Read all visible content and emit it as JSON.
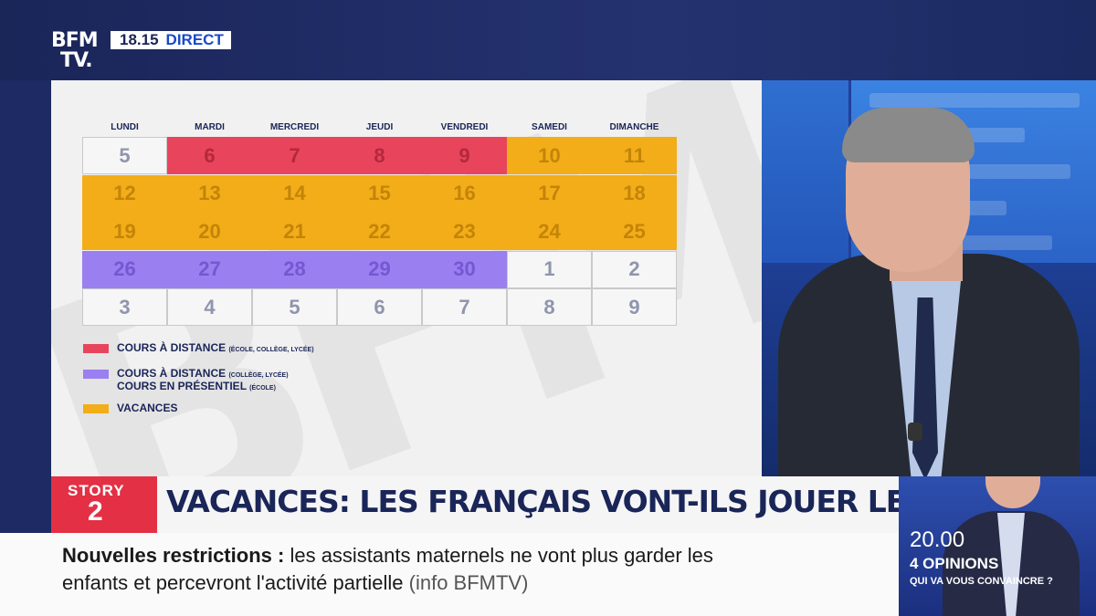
{
  "channel": {
    "logo_line1": "BFM",
    "logo_line2": "TV.",
    "time": "18.15",
    "live": "DIRECT"
  },
  "calendar": {
    "days": [
      "LUNDI",
      "MARDI",
      "MERCREDI",
      "JEUDI",
      "VENDREDI",
      "SAMEDI",
      "DIMANCHE"
    ],
    "weeks": [
      [
        "5",
        "6",
        "7",
        "8",
        "9",
        "10",
        "11"
      ],
      [
        "12",
        "13",
        "14",
        "15",
        "16",
        "17",
        "18"
      ],
      [
        "19",
        "20",
        "21",
        "22",
        "23",
        "24",
        "25"
      ],
      [
        "26",
        "27",
        "28",
        "29",
        "30",
        "1",
        "2"
      ],
      [
        "3",
        "4",
        "5",
        "6",
        "7",
        "8",
        "9"
      ]
    ],
    "cell_types": [
      [
        "white",
        "red",
        "red",
        "red",
        "red",
        "orange",
        "orange"
      ],
      [
        "orange",
        "orange",
        "orange",
        "orange",
        "orange",
        "orange",
        "orange"
      ],
      [
        "orange",
        "orange",
        "orange",
        "orange",
        "orange",
        "orange",
        "orange"
      ],
      [
        "purple",
        "purple",
        "purple",
        "purple",
        "purple",
        "white",
        "white"
      ],
      [
        "white",
        "white",
        "white",
        "white",
        "white",
        "white",
        "white"
      ]
    ],
    "colors": {
      "red": "#e8455c",
      "orange": "#f2ad18",
      "purple": "#9a7ff0",
      "white": "#f6f6f6"
    },
    "legend": [
      {
        "color": "red",
        "label": "COURS À DISTANCE",
        "note": "(ÉCOLE, COLLÈGE, LYCÉE)"
      },
      {
        "color": "purple",
        "label": "COURS À DISTANCE",
        "note": "(COLLÈGE, LYCÉE)",
        "label2": "COURS EN PRÉSENTIEL",
        "note2": "(ÉCOLE)"
      },
      {
        "color": "orange",
        "label": "VACANCES"
      }
    ]
  },
  "story": {
    "tag": "STORY",
    "number": "2",
    "headline": "VACANCES: LES FRANÇAIS VONT-ILS JOUER LE JEU ?"
  },
  "ticker": {
    "topic": "Nouvelles restrictions",
    "line1": "les assistants maternels ne vont plus garder les",
    "line2": "enfants et percevront l'activité partielle",
    "source": "(info BFMTV)"
  },
  "promo": {
    "time": "20.00",
    "title": "4 OPINIONS",
    "subtitle": "QUI VA VOUS CONVAINCRE ?"
  }
}
